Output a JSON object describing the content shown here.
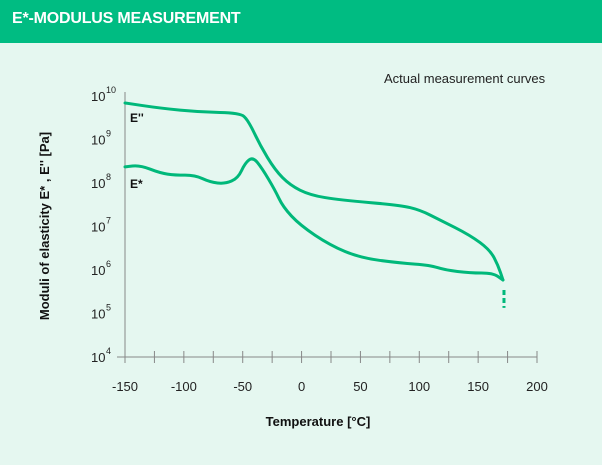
{
  "header": {
    "title": "E*-MODULUS MEASUREMENT"
  },
  "chart_data": {
    "type": "line",
    "title": "E*-MODULUS MEASUREMENT",
    "annotation": "Actual measurement curves",
    "xlabel": "Temperature [°C]",
    "ylabel": "Moduli of elasticity E* , E'' [Pa]",
    "xlim": [
      -150,
      200
    ],
    "ylim_log10": [
      4,
      10
    ],
    "yscale": "log",
    "x_ticks": [
      "-150",
      "-100",
      "-50",
      "0",
      "50",
      "100",
      "150",
      "200"
    ],
    "x_tick_values": [
      -150,
      -100,
      -50,
      0,
      50,
      100,
      150,
      200
    ],
    "y_ticks": [
      {
        "base": "10",
        "exp": "4"
      },
      {
        "base": "10",
        "exp": "5"
      },
      {
        "base": "10",
        "exp": "6"
      },
      {
        "base": "10",
        "exp": "7"
      },
      {
        "base": "10",
        "exp": "8"
      },
      {
        "base": "10",
        "exp": "9"
      },
      {
        "base": "10",
        "exp": "10"
      }
    ],
    "color": "#00b87a",
    "series": [
      {
        "name": "E''",
        "x": [
          -150,
          -120.3,
          -86.3,
          -52.3,
          -45.5,
          -35.3,
          -22.6,
          -9.8,
          7.2,
          32.6,
          83.6,
          100.6,
          117.6,
          143.1,
          160.1,
          166.9,
          171.1
        ],
        "log10_y": [
          9.84,
          9.72,
          9.63,
          9.61,
          9.45,
          8.87,
          8.3,
          7.95,
          7.72,
          7.61,
          7.49,
          7.38,
          7.15,
          6.8,
          6.46,
          6.11,
          5.77
        ]
      },
      {
        "name": "E*",
        "x": [
          -150,
          -137.3,
          -120.3,
          -107.5,
          -90.5,
          -77.8,
          -65,
          -54,
          -48,
          -41.3,
          -33.6,
          -22.6,
          -15.8,
          -1.3,
          24.2,
          49.7,
          83.6,
          109.1,
          121.8,
          143.1,
          162.6,
          171.1
        ],
        "log10_y": [
          8.37,
          8.41,
          8.23,
          8.18,
          8.18,
          8.02,
          7.98,
          8.11,
          8.46,
          8.6,
          8.34,
          7.84,
          7.45,
          7.03,
          6.57,
          6.28,
          6.16,
          6.11,
          6.0,
          5.93,
          5.93,
          5.77
        ]
      }
    ],
    "dashed_extension": {
      "x": [
        171.1,
        171.1
      ],
      "log10_y": [
        5.54,
        5.13
      ]
    }
  }
}
